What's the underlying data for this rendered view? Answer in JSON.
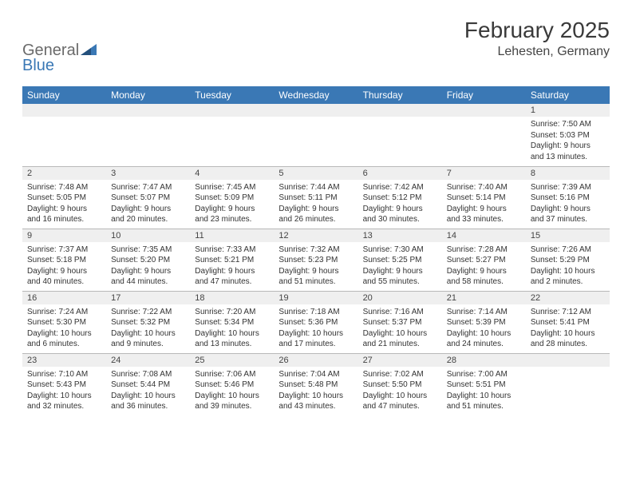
{
  "logo": {
    "text1": "General",
    "text2": "Blue"
  },
  "header": {
    "month": "February 2025",
    "location": "Lehesten, Germany"
  },
  "colors": {
    "header_bg": "#3a78b5",
    "header_text": "#ffffff",
    "daynum_bg": "#efefef",
    "border": "#b8b8b8",
    "text": "#333333"
  },
  "dayNames": [
    "Sunday",
    "Monday",
    "Tuesday",
    "Wednesday",
    "Thursday",
    "Friday",
    "Saturday"
  ],
  "weeks": [
    [
      null,
      null,
      null,
      null,
      null,
      null,
      {
        "n": "1",
        "sr": "Sunrise: 7:50 AM",
        "ss": "Sunset: 5:03 PM",
        "dl": "Daylight: 9 hours and 13 minutes."
      }
    ],
    [
      {
        "n": "2",
        "sr": "Sunrise: 7:48 AM",
        "ss": "Sunset: 5:05 PM",
        "dl": "Daylight: 9 hours and 16 minutes."
      },
      {
        "n": "3",
        "sr": "Sunrise: 7:47 AM",
        "ss": "Sunset: 5:07 PM",
        "dl": "Daylight: 9 hours and 20 minutes."
      },
      {
        "n": "4",
        "sr": "Sunrise: 7:45 AM",
        "ss": "Sunset: 5:09 PM",
        "dl": "Daylight: 9 hours and 23 minutes."
      },
      {
        "n": "5",
        "sr": "Sunrise: 7:44 AM",
        "ss": "Sunset: 5:11 PM",
        "dl": "Daylight: 9 hours and 26 minutes."
      },
      {
        "n": "6",
        "sr": "Sunrise: 7:42 AM",
        "ss": "Sunset: 5:12 PM",
        "dl": "Daylight: 9 hours and 30 minutes."
      },
      {
        "n": "7",
        "sr": "Sunrise: 7:40 AM",
        "ss": "Sunset: 5:14 PM",
        "dl": "Daylight: 9 hours and 33 minutes."
      },
      {
        "n": "8",
        "sr": "Sunrise: 7:39 AM",
        "ss": "Sunset: 5:16 PM",
        "dl": "Daylight: 9 hours and 37 minutes."
      }
    ],
    [
      {
        "n": "9",
        "sr": "Sunrise: 7:37 AM",
        "ss": "Sunset: 5:18 PM",
        "dl": "Daylight: 9 hours and 40 minutes."
      },
      {
        "n": "10",
        "sr": "Sunrise: 7:35 AM",
        "ss": "Sunset: 5:20 PM",
        "dl": "Daylight: 9 hours and 44 minutes."
      },
      {
        "n": "11",
        "sr": "Sunrise: 7:33 AM",
        "ss": "Sunset: 5:21 PM",
        "dl": "Daylight: 9 hours and 47 minutes."
      },
      {
        "n": "12",
        "sr": "Sunrise: 7:32 AM",
        "ss": "Sunset: 5:23 PM",
        "dl": "Daylight: 9 hours and 51 minutes."
      },
      {
        "n": "13",
        "sr": "Sunrise: 7:30 AM",
        "ss": "Sunset: 5:25 PM",
        "dl": "Daylight: 9 hours and 55 minutes."
      },
      {
        "n": "14",
        "sr": "Sunrise: 7:28 AM",
        "ss": "Sunset: 5:27 PM",
        "dl": "Daylight: 9 hours and 58 minutes."
      },
      {
        "n": "15",
        "sr": "Sunrise: 7:26 AM",
        "ss": "Sunset: 5:29 PM",
        "dl": "Daylight: 10 hours and 2 minutes."
      }
    ],
    [
      {
        "n": "16",
        "sr": "Sunrise: 7:24 AM",
        "ss": "Sunset: 5:30 PM",
        "dl": "Daylight: 10 hours and 6 minutes."
      },
      {
        "n": "17",
        "sr": "Sunrise: 7:22 AM",
        "ss": "Sunset: 5:32 PM",
        "dl": "Daylight: 10 hours and 9 minutes."
      },
      {
        "n": "18",
        "sr": "Sunrise: 7:20 AM",
        "ss": "Sunset: 5:34 PM",
        "dl": "Daylight: 10 hours and 13 minutes."
      },
      {
        "n": "19",
        "sr": "Sunrise: 7:18 AM",
        "ss": "Sunset: 5:36 PM",
        "dl": "Daylight: 10 hours and 17 minutes."
      },
      {
        "n": "20",
        "sr": "Sunrise: 7:16 AM",
        "ss": "Sunset: 5:37 PM",
        "dl": "Daylight: 10 hours and 21 minutes."
      },
      {
        "n": "21",
        "sr": "Sunrise: 7:14 AM",
        "ss": "Sunset: 5:39 PM",
        "dl": "Daylight: 10 hours and 24 minutes."
      },
      {
        "n": "22",
        "sr": "Sunrise: 7:12 AM",
        "ss": "Sunset: 5:41 PM",
        "dl": "Daylight: 10 hours and 28 minutes."
      }
    ],
    [
      {
        "n": "23",
        "sr": "Sunrise: 7:10 AM",
        "ss": "Sunset: 5:43 PM",
        "dl": "Daylight: 10 hours and 32 minutes."
      },
      {
        "n": "24",
        "sr": "Sunrise: 7:08 AM",
        "ss": "Sunset: 5:44 PM",
        "dl": "Daylight: 10 hours and 36 minutes."
      },
      {
        "n": "25",
        "sr": "Sunrise: 7:06 AM",
        "ss": "Sunset: 5:46 PM",
        "dl": "Daylight: 10 hours and 39 minutes."
      },
      {
        "n": "26",
        "sr": "Sunrise: 7:04 AM",
        "ss": "Sunset: 5:48 PM",
        "dl": "Daylight: 10 hours and 43 minutes."
      },
      {
        "n": "27",
        "sr": "Sunrise: 7:02 AM",
        "ss": "Sunset: 5:50 PM",
        "dl": "Daylight: 10 hours and 47 minutes."
      },
      {
        "n": "28",
        "sr": "Sunrise: 7:00 AM",
        "ss": "Sunset: 5:51 PM",
        "dl": "Daylight: 10 hours and 51 minutes."
      },
      null
    ]
  ]
}
